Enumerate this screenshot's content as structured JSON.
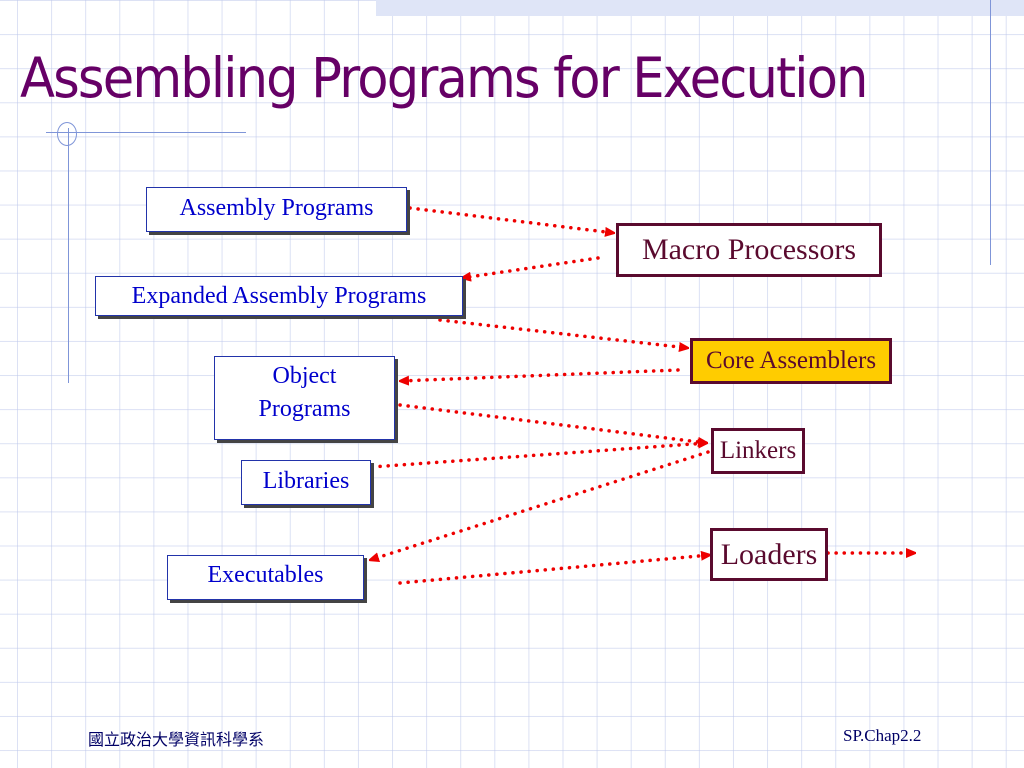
{
  "title": "Assembling Programs for Execution",
  "inputs": [
    {
      "label": "Assembly Programs"
    },
    {
      "label": "Expanded Assembly Programs"
    },
    {
      "label": "Object Programs"
    },
    {
      "label": "Libraries"
    },
    {
      "label": "Executables"
    }
  ],
  "tools": [
    {
      "label": "Macro Processors"
    },
    {
      "label": "Core Assemblers",
      "highlight": "#ffcc00"
    },
    {
      "label": "Linkers"
    },
    {
      "label": "Loaders"
    }
  ],
  "edges": [
    {
      "from": "Assembly Programs",
      "to": "Macro Processors"
    },
    {
      "from": "Macro Processors",
      "to": "Expanded Assembly Programs"
    },
    {
      "from": "Expanded Assembly Programs",
      "to": "Core Assemblers"
    },
    {
      "from": "Core Assemblers",
      "to": "Object Programs"
    },
    {
      "from": "Object Programs",
      "to": "Linkers"
    },
    {
      "from": "Libraries",
      "to": "Linkers"
    },
    {
      "from": "Linkers",
      "to": "Executables"
    },
    {
      "from": "Executables",
      "to": "Loaders"
    },
    {
      "from": "Loaders",
      "to": ""
    }
  ],
  "colors": {
    "title": "#660066",
    "arrow": "#ee0000",
    "input_text": "#0000cc",
    "tool_border": "#5a0a2e"
  },
  "footer": {
    "left": "國立政治大學資訊科學系",
    "right": "SP.Chap2.2"
  }
}
